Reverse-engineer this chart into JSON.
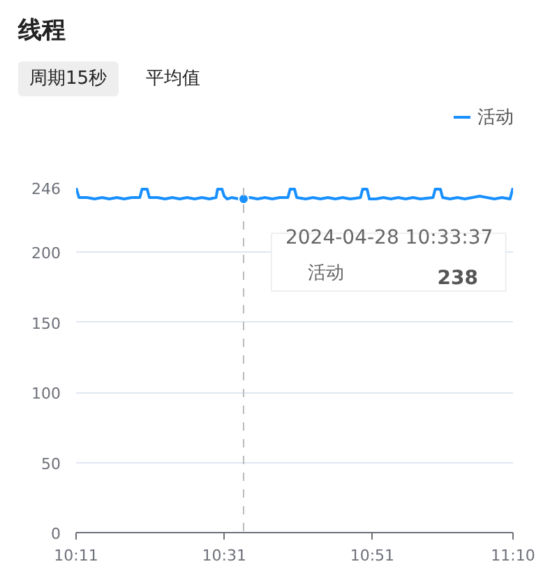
{
  "chart_data": {
    "type": "line",
    "title": "线程",
    "annotations": [
      "周期15秒",
      "平均值",
      {
        "text": "2024-04-28 10:33:37",
        "x": 10.5603,
        "y": 238
      },
      "238"
    ],
    "x": [
      10.1833,
      10.19,
      10.2083,
      10.225,
      10.2417,
      10.2583,
      10.275,
      10.2917,
      10.3083,
      10.3267,
      10.3317,
      10.3433,
      10.3483,
      10.3667,
      10.3833,
      10.4,
      10.4167,
      10.4333,
      10.45,
      10.4667,
      10.4833,
      10.4983,
      10.5017,
      10.5117,
      10.5167,
      10.5233,
      10.5333,
      10.55,
      10.5603,
      10.575,
      10.5917,
      10.6083,
      10.625,
      10.6417,
      10.66,
      10.665,
      10.675,
      10.68,
      10.7,
      10.7167,
      10.7333,
      10.75,
      10.7667,
      10.7833,
      10.8,
      10.8233,
      10.8283,
      10.8383,
      10.8433,
      10.8583,
      10.875,
      10.8917,
      10.9083,
      10.925,
      10.9417,
      10.9583,
      10.9867,
      10.9917,
      11.0033,
      11.0083,
      11.025,
      11.0417,
      11.0583,
      11.075,
      11.0917,
      11.1083,
      11.125,
      11.1417,
      11.16,
      11.1667
    ],
    "series": [
      {
        "name": "活动",
        "color": "#1890ff",
        "values": [
          246,
          239,
          239,
          238,
          239,
          238,
          239,
          238,
          239,
          239,
          245,
          245,
          239,
          239,
          238,
          239,
          238,
          239,
          238,
          239,
          238,
          239,
          245,
          245,
          240,
          238,
          239,
          238,
          238,
          239,
          238,
          239,
          238,
          239,
          239,
          245,
          245,
          239,
          238,
          239,
          238,
          239,
          238,
          239,
          238,
          239,
          245,
          245,
          238,
          238,
          239,
          238,
          239,
          238,
          239,
          238,
          239,
          245,
          245,
          239,
          238,
          239,
          238,
          239,
          240,
          239,
          238,
          239,
          238,
          246
        ]
      }
    ],
    "xlim": [
      10.1833,
      11.1667
    ],
    "xticks": [
      {
        "value": 10.1833,
        "label": "10:11"
      },
      {
        "value": 10.5167,
        "label": "10:31"
      },
      {
        "value": 10.85,
        "label": "10:51"
      },
      {
        "value": 11.1667,
        "label": "11:10"
      }
    ],
    "ylim": [
      0,
      246
    ],
    "yticks": [
      0,
      50,
      100,
      150,
      200,
      246
    ],
    "grid": "y",
    "legend": "top right",
    "line_style": "solid",
    "ref_lines": [
      {
        "axis": "x",
        "value": 10.5603,
        "color": "#bbbbbb",
        "line_style": "dashed"
      }
    ]
  }
}
